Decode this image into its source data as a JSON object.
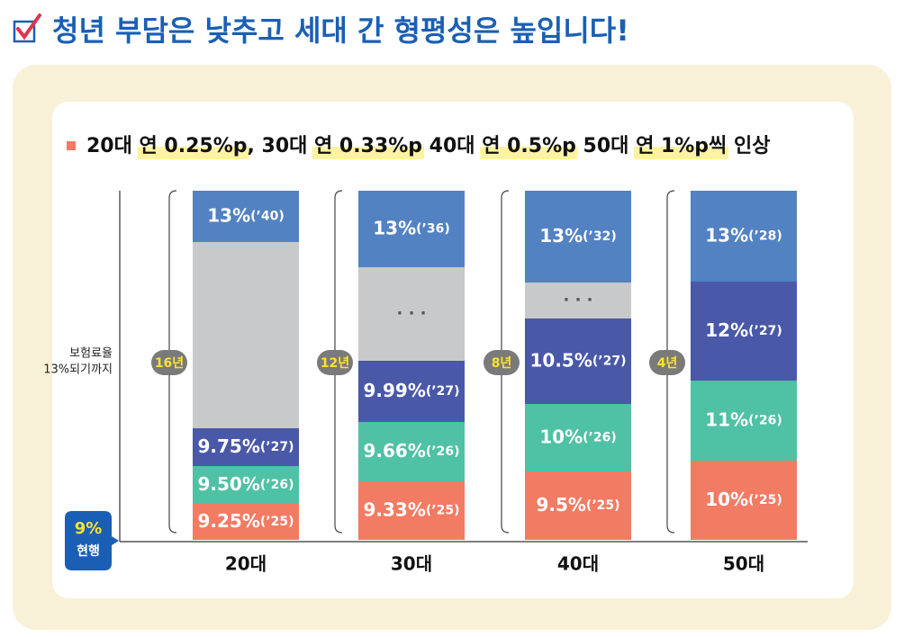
{
  "title": "청년 부담은 낮추고 세대 간 형평성은 높입니다!",
  "subtitle_parts": [
    {
      "text": "20대 ",
      "highlight": false
    },
    {
      "text": "연 0.25%p",
      "highlight": true
    },
    {
      "text": ", 30대 ",
      "highlight": false
    },
    {
      "text": "연 0.33%p",
      "highlight": true
    },
    {
      "text": " 40대 ",
      "highlight": false
    },
    {
      "text": "연 0.5%p",
      "highlight": true
    },
    {
      "text": " 50대 ",
      "highlight": false
    },
    {
      "text": "연 1%p씩",
      "highlight": true
    },
    {
      "text": " 인상",
      "highlight": false
    }
  ],
  "axis_label": [
    "보험료율",
    "13%되기까지"
  ],
  "current": {
    "rate": "9%",
    "label": "현행"
  },
  "groups": [
    {
      "label": "20대",
      "years": "16년",
      "segments": [
        {
          "rate": "13%",
          "year": "(’40)",
          "color": "#5282c2"
        },
        {
          "color": "#c8c9cb"
        },
        {
          "rate": "9.75%",
          "year": "(’27)",
          "color": "#4a58a8"
        },
        {
          "rate": "9.50%",
          "year": "(’26)",
          "color": "#4fc1a5"
        },
        {
          "rate": "9.25%",
          "year": "(’25)",
          "color": "#f27b63"
        }
      ]
    },
    {
      "label": "30대",
      "years": "12년",
      "segments": [
        {
          "rate": "13%",
          "year": "(’36)",
          "color": "#5282c2"
        },
        {
          "dots": "· · ·",
          "color": "#c8c9cb"
        },
        {
          "rate": "9.99%",
          "year": "(’27)",
          "color": "#4a58a8"
        },
        {
          "rate": "9.66%",
          "year": "(’26)",
          "color": "#4fc1a5"
        },
        {
          "rate": "9.33%",
          "year": "(’25)",
          "color": "#f27b63"
        }
      ]
    },
    {
      "label": "40대",
      "years": "8년",
      "segments": [
        {
          "rate": "13%",
          "year": "(’32)",
          "color": "#5282c2"
        },
        {
          "dots": "· · ·",
          "color": "#c8c9cb"
        },
        {
          "rate": "10.5%",
          "year": "(’27)",
          "color": "#4a58a8"
        },
        {
          "rate": "10%",
          "year": "(’26)",
          "color": "#4fc1a5"
        },
        {
          "rate": "9.5%",
          "year": "(’25)",
          "color": "#f27b63"
        }
      ]
    },
    {
      "label": "50대",
      "years": "4년",
      "segments": [
        {
          "rate": "13%",
          "year": "(’28)",
          "color": "#5282c2"
        },
        {
          "rate": "12%",
          "year": "(’27)",
          "color": "#4a58a8"
        },
        {
          "rate": "11%",
          "year": "(’26)",
          "color": "#4fc1a5"
        },
        {
          "rate": "10%",
          "year": "(’25)",
          "color": "#f27b63"
        }
      ]
    }
  ]
}
